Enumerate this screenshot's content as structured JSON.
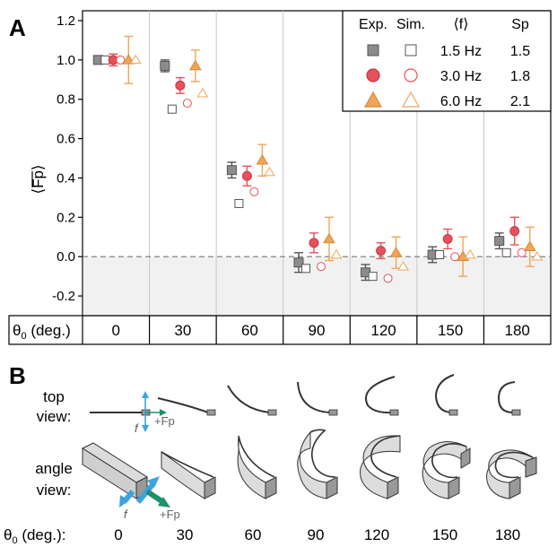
{
  "panel_a": {
    "label": "A"
  },
  "panel_b": {
    "label": "B",
    "row_top_line1": "top",
    "row_top_line2": "view:",
    "row_angle_line1": "angle",
    "row_angle_line2": "view:",
    "force_f": "f",
    "force_fp_top": "+Fp",
    "force_fp_angle": "+Fp",
    "theta_label": "θ",
    "theta_sub": "0",
    "theta_unit": " (deg.):",
    "angles": [
      "0",
      "30",
      "60",
      "90",
      "120",
      "150",
      "180"
    ]
  },
  "colors": {
    "gray": "#8c8c8c",
    "red": "#e8505b",
    "orange": "#f0a55a",
    "shade": "#f1f1f1",
    "bar_end": "#999999",
    "band_fill": "#dcdcdc",
    "arrow_blue": "#3aa3e0",
    "arrow_green": "#1f8f6e"
  },
  "chart_data": {
    "type": "scatter",
    "ylabel": "⟨Fp⟩",
    "ylim": [
      -0.3,
      1.25
    ],
    "yticks": [
      "-0.2",
      "0.0",
      "0.2",
      "0.4",
      "0.6",
      "0.8",
      "1.0",
      "1.2"
    ],
    "ytick_values": [
      -0.2,
      0.0,
      0.2,
      0.4,
      0.6,
      0.8,
      1.0,
      1.2
    ],
    "reference_line": 0.0,
    "categories": [
      "0",
      "30",
      "60",
      "90",
      "120",
      "150",
      "180"
    ],
    "x_table_label": "θ",
    "x_table_sub": "0",
    "x_table_unit": " (deg.)",
    "legend": {
      "placement": "top-right",
      "headers": [
        "Exp.",
        "Sim.",
        "⟨f⟩",
        "Sp"
      ],
      "rows": [
        {
          "freq": "1.5 Hz",
          "sp": "1.5",
          "marker": "square",
          "color": "gray"
        },
        {
          "freq": "3.0 Hz",
          "sp": "1.8",
          "marker": "circle",
          "color": "red"
        },
        {
          "freq": "6.0 Hz",
          "sp": "2.1",
          "marker": "triangle",
          "color": "orange"
        }
      ]
    },
    "series": [
      {
        "name": "1.5 Hz",
        "marker": "square",
        "color": "gray",
        "exp": [
          1.0,
          0.97,
          0.44,
          -0.03,
          -0.08,
          0.01,
          0.08
        ],
        "exp_err": [
          0.02,
          0.03,
          0.04,
          0.05,
          0.04,
          0.04,
          0.04
        ],
        "sim": [
          1.0,
          0.75,
          0.27,
          -0.06,
          -0.1,
          0.01,
          0.02
        ]
      },
      {
        "name": "3.0 Hz",
        "marker": "circle",
        "color": "red",
        "exp": [
          1.0,
          0.87,
          0.41,
          0.07,
          0.03,
          0.09,
          0.13
        ],
        "exp_err": [
          0.03,
          0.04,
          0.05,
          0.05,
          0.04,
          0.05,
          0.07
        ],
        "sim": [
          1.0,
          0.78,
          0.33,
          -0.05,
          -0.11,
          0.0,
          0.02
        ]
      },
      {
        "name": "6.0 Hz",
        "marker": "triangle",
        "color": "orange",
        "exp": [
          1.0,
          0.97,
          0.49,
          0.09,
          0.02,
          0.0,
          0.05
        ],
        "exp_err": [
          0.12,
          0.08,
          0.08,
          0.11,
          0.08,
          0.1,
          0.1
        ],
        "sim": [
          1.0,
          0.83,
          0.43,
          0.01,
          -0.05,
          0.01,
          0.0
        ]
      }
    ]
  }
}
